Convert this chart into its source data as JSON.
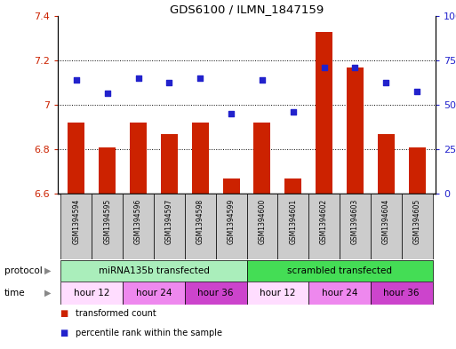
{
  "title": "GDS6100 / ILMN_1847159",
  "samples": [
    "GSM1394594",
    "GSM1394595",
    "GSM1394596",
    "GSM1394597",
    "GSM1394598",
    "GSM1394599",
    "GSM1394600",
    "GSM1394601",
    "GSM1394602",
    "GSM1394603",
    "GSM1394604",
    "GSM1394605"
  ],
  "bar_values": [
    6.92,
    6.81,
    6.92,
    6.87,
    6.92,
    6.67,
    6.92,
    6.67,
    7.33,
    7.17,
    6.87,
    6.81
  ],
  "scatter_values": [
    7.11,
    7.05,
    7.12,
    7.1,
    7.12,
    6.96,
    7.11,
    6.97,
    7.17,
    7.17,
    7.1,
    7.06
  ],
  "ylim_left": [
    6.6,
    7.4
  ],
  "ylim_right": [
    0,
    100
  ],
  "yticks_left": [
    6.6,
    6.8,
    7.0,
    7.2,
    7.4
  ],
  "ytick_labels_left": [
    "6.6",
    "6.8",
    "7",
    "7.2",
    "7.4"
  ],
  "yticks_right": [
    0,
    25,
    50,
    75,
    100
  ],
  "ytick_labels_right": [
    "0",
    "25",
    "50",
    "75",
    "100%"
  ],
  "bar_color": "#cc2200",
  "scatter_color": "#2222cc",
  "bar_bottom": 6.6,
  "protocol_groups": [
    {
      "label": "miRNA135b transfected",
      "start": 0,
      "end": 6,
      "color": "#aaeebb"
    },
    {
      "label": "scrambled transfected",
      "start": 6,
      "end": 12,
      "color": "#44dd55"
    }
  ],
  "time_groups": [
    {
      "label": "hour 12",
      "start": 0,
      "end": 2,
      "color": "#ffddff"
    },
    {
      "label": "hour 24",
      "start": 2,
      "end": 4,
      "color": "#ee88ee"
    },
    {
      "label": "hour 36",
      "start": 4,
      "end": 6,
      "color": "#cc44cc"
    },
    {
      "label": "hour 12",
      "start": 6,
      "end": 8,
      "color": "#ffddff"
    },
    {
      "label": "hour 24",
      "start": 8,
      "end": 10,
      "color": "#ee88ee"
    },
    {
      "label": "hour 36",
      "start": 10,
      "end": 12,
      "color": "#cc44cc"
    }
  ],
  "legend_items": [
    {
      "label": "transformed count",
      "color": "#cc2200"
    },
    {
      "label": "percentile rank within the sample",
      "color": "#2222cc"
    }
  ],
  "protocol_label": "protocol",
  "time_label": "time",
  "sample_bg_color": "#cccccc",
  "grid_color": "#000000",
  "bar_width": 0.55
}
